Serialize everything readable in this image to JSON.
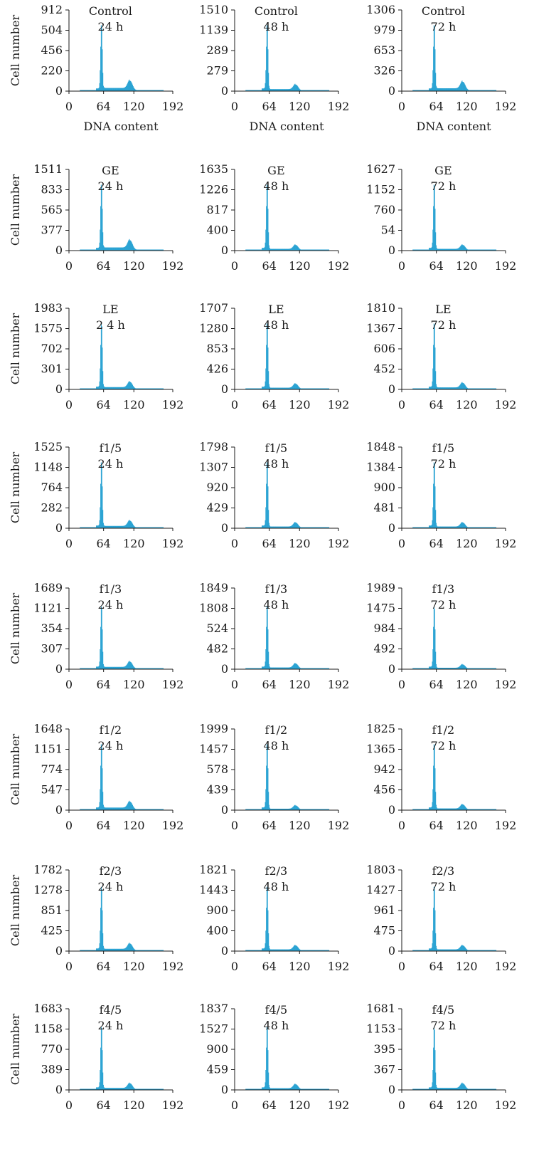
{
  "colors": {
    "histogram": "#2aa3d3",
    "axis": "#1a1a1a"
  },
  "chart_data": {
    "type": "bar",
    "description_layout": "grid of flow-cytometry DNA histograms: rows = treatments, columns = time points",
    "y_axis_label": "Cell number",
    "x_axis_label": "DNA content",
    "x_ticks": [
      0,
      64,
      120,
      192
    ],
    "x_range": [
      0,
      192
    ],
    "g1_peak_position": 64,
    "g2_peak_position": 120,
    "rows": [
      {
        "treatment": "Control",
        "show_xlabel": true,
        "panels": [
          {
            "time": "24 h",
            "y_ticks": [
              "912",
              "504",
              "456",
              "220",
              "0"
            ],
            "g1_peak_fraction": 0.82,
            "g2_height_fraction": 0.11
          },
          {
            "time": "48 h",
            "y_ticks": [
              "1510",
              "1139",
              "289",
              "279",
              "0"
            ],
            "g1_peak_fraction": 0.82,
            "g2_height_fraction": 0.07
          },
          {
            "time": "72 h",
            "y_ticks": [
              "1306",
              "979",
              "653",
              "326",
              "0"
            ],
            "g1_peak_fraction": 0.82,
            "g2_height_fraction": 0.1
          }
        ]
      },
      {
        "treatment": "GE",
        "show_xlabel": false,
        "panels": [
          {
            "time": "24 h",
            "y_ticks": [
              "1511",
              "833",
              "565",
              "377",
              "0"
            ],
            "g1_peak_fraction": 0.82,
            "g2_height_fraction": 0.11
          },
          {
            "time": "48 h",
            "y_ticks": [
              "1635",
              "1226",
              "817",
              "400",
              "0"
            ],
            "g1_peak_fraction": 0.82,
            "g2_height_fraction": 0.06
          },
          {
            "time": "72 h",
            "y_ticks": [
              "1627",
              "1152",
              "760",
              "54",
              "0"
            ],
            "g1_peak_fraction": 0.82,
            "g2_height_fraction": 0.06
          }
        ]
      },
      {
        "treatment": "LE",
        "show_xlabel": false,
        "panels": [
          {
            "time": "2 4 h",
            "y_ticks": [
              "1983",
              "1575",
              "702",
              "301",
              "0"
            ],
            "g1_peak_fraction": 0.82,
            "g2_height_fraction": 0.08
          },
          {
            "time": "48 h",
            "y_ticks": [
              "1707",
              "1280",
              "853",
              "426",
              "0"
            ],
            "g1_peak_fraction": 0.82,
            "g2_height_fraction": 0.06
          },
          {
            "time": "72 h",
            "y_ticks": [
              "1810",
              "1367",
              "606",
              "452",
              "0"
            ],
            "g1_peak_fraction": 0.82,
            "g2_height_fraction": 0.07
          }
        ]
      },
      {
        "treatment": "f1/5",
        "show_xlabel": false,
        "panels": [
          {
            "time": "24 h",
            "y_ticks": [
              "1525",
              "1148",
              "764",
              "282",
              "0"
            ],
            "g1_peak_fraction": 0.82,
            "g2_height_fraction": 0.08
          },
          {
            "time": "48 h",
            "y_ticks": [
              "1798",
              "1307",
              "920",
              "429",
              "0"
            ],
            "g1_peak_fraction": 0.82,
            "g2_height_fraction": 0.06
          },
          {
            "time": "72 h",
            "y_ticks": [
              "1848",
              "1384",
              "900",
              "481",
              "0"
            ],
            "g1_peak_fraction": 0.82,
            "g2_height_fraction": 0.06
          }
        ]
      },
      {
        "treatment": "f1/3",
        "show_xlabel": false,
        "panels": [
          {
            "time": "24 h",
            "y_ticks": [
              "1689",
              "1121",
              "354",
              "307",
              "0"
            ],
            "g1_peak_fraction": 0.78,
            "g2_height_fraction": 0.08
          },
          {
            "time": "48 h",
            "y_ticks": [
              "1849",
              "1808",
              "524",
              "482",
              "0"
            ],
            "g1_peak_fraction": 0.78,
            "g2_height_fraction": 0.06
          },
          {
            "time": "72 h",
            "y_ticks": [
              "1989",
              "1475",
              "984",
              "492",
              "0"
            ],
            "g1_peak_fraction": 0.78,
            "g2_height_fraction": 0.05
          }
        ]
      },
      {
        "treatment": "f1/2",
        "show_xlabel": false,
        "panels": [
          {
            "time": "24 h",
            "y_ticks": [
              "1648",
              "1151",
              "774",
              "547",
              "0"
            ],
            "g1_peak_fraction": 0.82,
            "g2_height_fraction": 0.09
          },
          {
            "time": "48 h",
            "y_ticks": [
              "1999",
              "1457",
              "578",
              "439",
              "0"
            ],
            "g1_peak_fraction": 0.82,
            "g2_height_fraction": 0.05
          },
          {
            "time": "72 h",
            "y_ticks": [
              "1825",
              "1365",
              "942",
              "456",
              "0"
            ],
            "g1_peak_fraction": 0.82,
            "g2_height_fraction": 0.06
          }
        ]
      },
      {
        "treatment": "f2/3",
        "show_xlabel": false,
        "panels": [
          {
            "time": "24 h",
            "y_ticks": [
              "1782",
              "1278",
              "851",
              "425",
              "0"
            ],
            "g1_peak_fraction": 0.8,
            "g2_height_fraction": 0.08
          },
          {
            "time": "48 h",
            "y_ticks": [
              "1821",
              "1443",
              "900",
              "400",
              "0"
            ],
            "g1_peak_fraction": 0.8,
            "g2_height_fraction": 0.06
          },
          {
            "time": "72 h",
            "y_ticks": [
              "1803",
              "1427",
              "961",
              "475",
              "0"
            ],
            "g1_peak_fraction": 0.8,
            "g2_height_fraction": 0.06
          }
        ]
      },
      {
        "treatment": "f4/5",
        "show_xlabel": false,
        "panels": [
          {
            "time": "24 h",
            "y_ticks": [
              "1683",
              "1158",
              "770",
              "389",
              "0"
            ],
            "g1_peak_fraction": 0.78,
            "g2_height_fraction": 0.07
          },
          {
            "time": "48 h",
            "y_ticks": [
              "1837",
              "1527",
              "900",
              "459",
              "0"
            ],
            "g1_peak_fraction": 0.78,
            "g2_height_fraction": 0.06
          },
          {
            "time": "72 h",
            "y_ticks": [
              "1681",
              "1153",
              "395",
              "367",
              "0"
            ],
            "g1_peak_fraction": 0.78,
            "g2_height_fraction": 0.07
          }
        ]
      }
    ]
  }
}
